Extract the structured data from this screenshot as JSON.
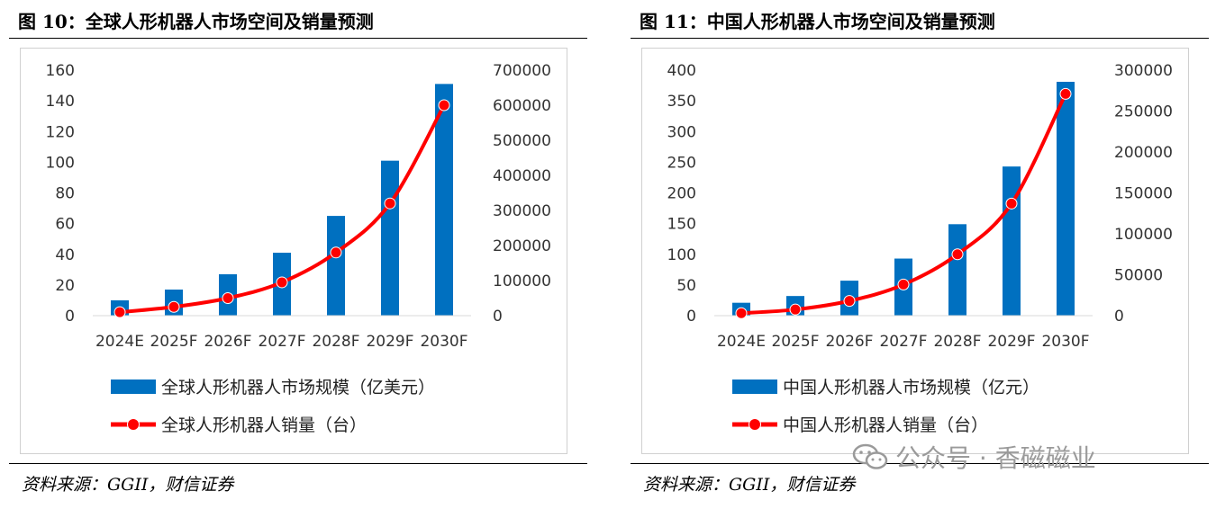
{
  "figures": [
    {
      "title": "图 10：全球人形机器人市场空间及销量预测",
      "source": "资料来源：GGII，财信证券"
    },
    {
      "title": "图 11：中国人形机器人市场空间及销量预测",
      "source": "资料来源：GGII，财信证券"
    }
  ],
  "watermark": "公众号 · 香磁磁业",
  "colors": {
    "bar": "#0070C0",
    "line": "#FF0000",
    "marker": "#FF0000"
  },
  "chart_data": [
    {
      "type": "bar",
      "categories": [
        "2024E",
        "2025F",
        "2026F",
        "2027F",
        "2028F",
        "2029F",
        "2030F"
      ],
      "series": [
        {
          "name": "全球人形机器人市场规模（亿美元）",
          "type": "bar",
          "axis": "left",
          "values": [
            10,
            17,
            27,
            41,
            65,
            101,
            151
          ]
        },
        {
          "name": "全球人形机器人销量（台）",
          "type": "line",
          "axis": "right",
          "values": [
            10000,
            25000,
            50000,
            95000,
            180000,
            320000,
            600000
          ]
        }
      ],
      "yleft": {
        "min": 0,
        "max": 160,
        "step": 20
      },
      "yright": {
        "min": 0,
        "max": 700000,
        "step": 100000
      }
    },
    {
      "type": "bar",
      "categories": [
        "2024E",
        "2025F",
        "2026F",
        "2027F",
        "2028F",
        "2029F",
        "2030F"
      ],
      "series": [
        {
          "name": "中国人形机器人市场规模（亿元）",
          "type": "bar",
          "axis": "left",
          "values": [
            21,
            32,
            57,
            93,
            149,
            243,
            381
          ]
        },
        {
          "name": "中国人形机器人销量（台）",
          "type": "line",
          "axis": "right",
          "values": [
            3000,
            7500,
            18000,
            38000,
            75000,
            137000,
            271000
          ]
        }
      ],
      "yleft": {
        "min": 0,
        "max": 400,
        "step": 50
      },
      "yright": {
        "min": 0,
        "max": 300000,
        "step": 50000
      }
    }
  ]
}
